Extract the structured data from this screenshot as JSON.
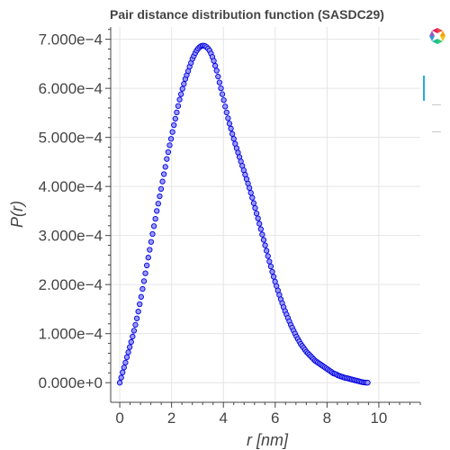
{
  "chart_data": {
    "type": "scatter",
    "title": "Pair distance distribution function (SASDC29)",
    "xlabel": "r [nm]",
    "ylabel": "P(r)",
    "xlim": [
      -0.35,
      11.6
    ],
    "ylim": [
      -4e-05,
      0.000725
    ],
    "xticks": [
      0,
      2,
      4,
      6,
      8,
      10
    ],
    "xtick_labels": [
      "0",
      "2",
      "4",
      "6",
      "8",
      "10"
    ],
    "yticks": [
      0,
      0.0001,
      0.0002,
      0.0003,
      0.0004,
      0.0005,
      0.0006,
      0.0007
    ],
    "ytick_labels": [
      "0.000e+0",
      "1.000e−4",
      "2.000e−4",
      "3.000e−4",
      "4.000e−4",
      "5.000e−4",
      "6.000e−4",
      "7.000e−4"
    ],
    "grid": true,
    "series": [
      {
        "x_start": 0.0,
        "x_step": 0.055,
        "values": [
          0,
          1.03e-05,
          2.1e-05,
          3.1e-05,
          4.1e-05,
          5.2e-05,
          6.2e-05,
          7.25e-05,
          8.3e-05,
          9.4e-05,
          0.000106,
          0.000118,
          0.000131,
          0.000145,
          0.00016,
          0.000175,
          0.000191,
          0.000207,
          0.000223,
          0.000239,
          0.000255,
          0.000271,
          0.000287,
          0.000303,
          0.000319,
          0.000334,
          0.00035,
          0.000365,
          0.00038,
          0.000395,
          0.00041,
          0.000425,
          0.00044,
          0.000456,
          0.00047,
          0.000484,
          0.000497,
          0.000511,
          0.000525,
          0.000538,
          0.000551,
          0.000564,
          0.000577,
          0.000588,
          0.000599,
          0.000609,
          0.000619,
          0.000627,
          0.000635,
          0.000644,
          0.000652,
          0.00066,
          0.000666,
          0.000672,
          0.000677,
          0.000681,
          0.000684,
          0.000686,
          0.000687,
          0.000687,
          0.000686,
          0.000684,
          0.000681,
          0.000677,
          0.000671,
          0.000664,
          0.000656,
          0.000646,
          0.000636,
          0.000624,
          0.000612,
          0.0006,
          0.000588,
          0.000576,
          0.000563,
          0.000551,
          0.000539,
          0.000528,
          0.000518,
          0.000507,
          0.000497,
          0.000487,
          0.000478,
          0.000469,
          0.00046,
          0.000451,
          0.000442,
          0.000433,
          0.000424,
          0.000415,
          0.000406,
          0.000397,
          0.000387,
          0.000377,
          0.000366,
          0.000356,
          0.000345,
          0.000335,
          0.000324,
          0.000313,
          0.000302,
          0.000291,
          0.00028,
          0.000269,
          0.000258,
          0.000247,
          0.000237,
          0.000226,
          0.000216,
          0.000206,
          0.000197,
          0.000188,
          0.000179,
          0.00017,
          0.000162,
          0.000154,
          0.000146,
          0.000139,
          0.000132,
          0.000125,
          0.000118,
          0.000112,
          0.000106,
          0.0001,
          9.4e-05,
          8.9e-05,
          8.4e-05,
          7.9e-05,
          7.5e-05,
          7.1e-05,
          6.7e-05,
          6.3e-05,
          6e-05,
          5.7e-05,
          5.4e-05,
          5.1e-05,
          4.8e-05,
          4.5e-05,
          4.3e-05,
          4.1e-05,
          3.9e-05,
          3.7e-05,
          3.5e-05,
          3.3e-05,
          3.1e-05,
          2.9e-05,
          2.7e-05,
          2.5e-05,
          2.3e-05,
          2.1e-05,
          1.9e-05,
          1.8e-05,
          1.7e-05,
          1.5e-05,
          1.4e-05,
          1.3e-05,
          1.2e-05,
          1.1e-05,
          1e-05,
          9.5e-06,
          8.8e-06,
          8e-06,
          7.3e-06,
          6.5e-06,
          5.8e-06,
          5e-06,
          4.3e-06,
          3.5e-06,
          2.8e-06,
          2e-06,
          1.3e-06,
          7e-07,
          3e-07,
          1e-07,
          0
        ]
      }
    ]
  },
  "colors": {
    "marker_fill": "#9999ff",
    "marker_stroke": "#0000dd",
    "grid": "#e5e5e5",
    "axis": "#444444",
    "toolbar_active": "#26aae1"
  },
  "toolbar": {
    "logo_icon": "bokeh-logo-icon",
    "tools": [
      "pan-tool-icon",
      "box-zoom-tool-icon",
      "reset-tool-icon"
    ]
  }
}
